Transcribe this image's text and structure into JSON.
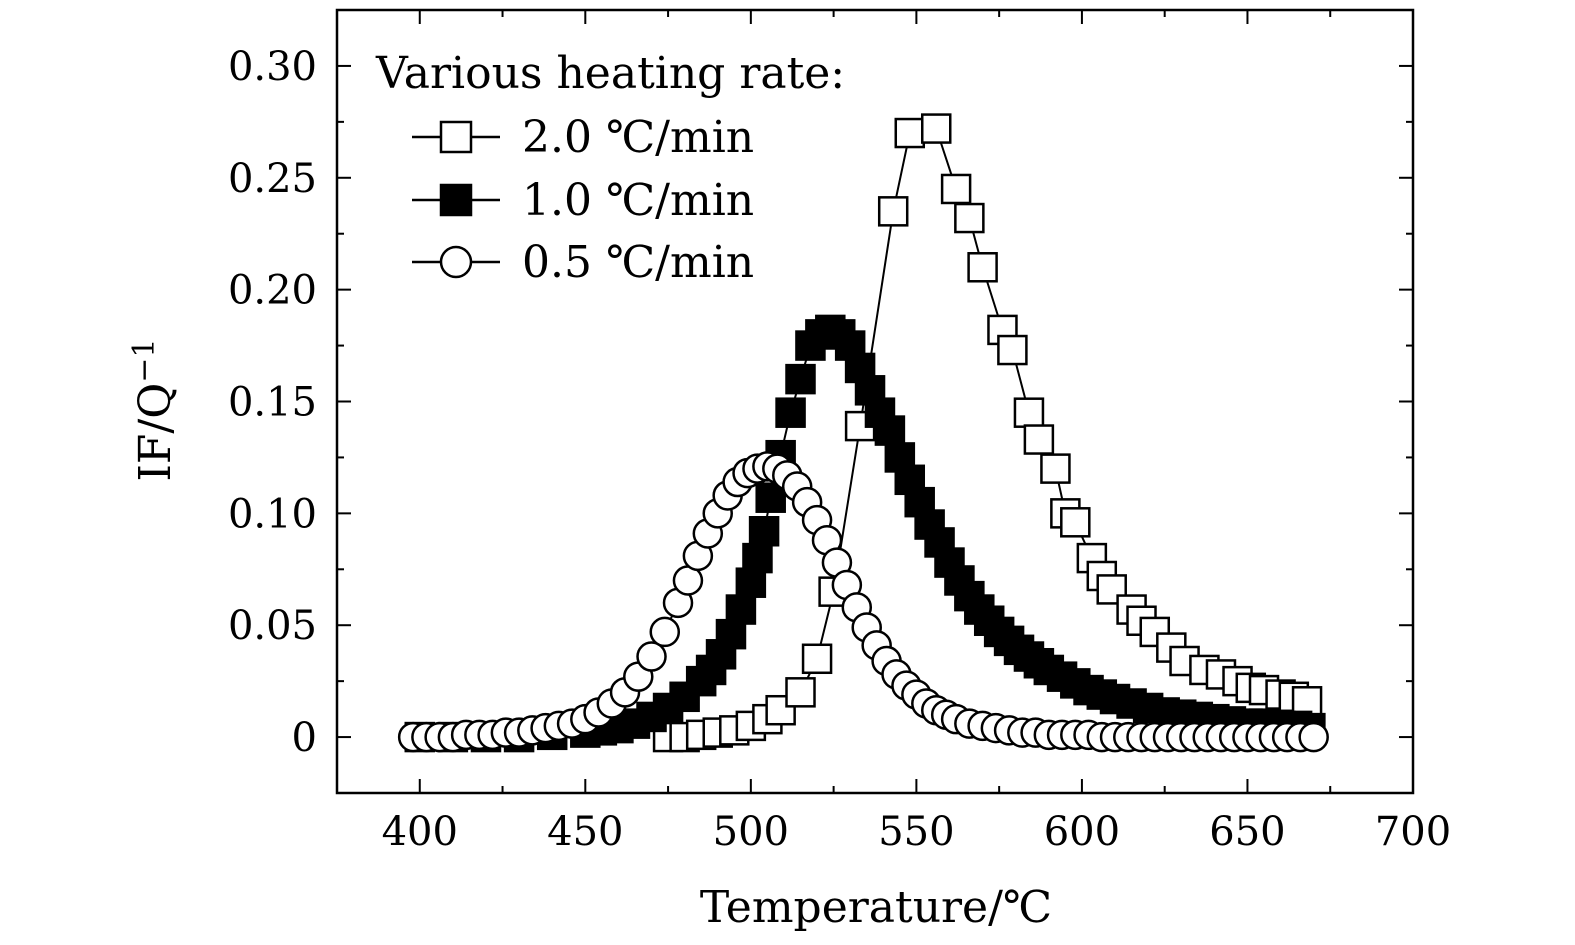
{
  "chart_data": {
    "type": "scatter",
    "xlabel": "Temperature/℃",
    "ylabel": "IF/Q",
    "ylabel_superscript": "−1",
    "xlim": [
      375,
      700
    ],
    "ylim": [
      -0.025,
      0.325
    ],
    "x_ticks": [
      400,
      450,
      500,
      550,
      600,
      650,
      700
    ],
    "x_tick_labels": [
      "400",
      "450",
      "500",
      "550",
      "600",
      "650",
      "700"
    ],
    "y_ticks": [
      0,
      0.05,
      0.1,
      0.15,
      0.2,
      0.25,
      0.3
    ],
    "y_tick_labels": [
      "0",
      "0.05",
      "0.10",
      "0.15",
      "0.20",
      "0.25",
      "0.30"
    ],
    "grid": false,
    "legend": {
      "title": "Various heating rate:",
      "position": "top-left"
    },
    "series": [
      {
        "name": "2.0 ℃/min",
        "marker": "open-square",
        "x": [
          475,
          480,
          485,
          490,
          495,
          500,
          505,
          509,
          515,
          520,
          525,
          533,
          543,
          548,
          556,
          562,
          566,
          570,
          576,
          579,
          584,
          587,
          592,
          595,
          598,
          603,
          606,
          609,
          615,
          618,
          622,
          627,
          631,
          637,
          642,
          647,
          651,
          655,
          660,
          664,
          668
        ],
        "y": [
          0.0,
          0.0,
          0.001,
          0.002,
          0.003,
          0.005,
          0.008,
          0.012,
          0.02,
          0.035,
          0.065,
          0.139,
          0.235,
          0.27,
          0.272,
          0.245,
          0.232,
          0.21,
          0.182,
          0.173,
          0.145,
          0.133,
          0.12,
          0.1,
          0.096,
          0.08,
          0.072,
          0.066,
          0.057,
          0.052,
          0.047,
          0.04,
          0.034,
          0.03,
          0.028,
          0.025,
          0.022,
          0.021,
          0.019,
          0.018,
          0.016
        ]
      },
      {
        "name": "1.0 ℃/min",
        "marker": "filled-square",
        "x": [
          400,
          410,
          420,
          430,
          440,
          450,
          455,
          460,
          465,
          470,
          475,
          480,
          485,
          488,
          491,
          494,
          497,
          500,
          502,
          504,
          506,
          509,
          512,
          515,
          518,
          521,
          524,
          527,
          530,
          533,
          536,
          539,
          542,
          545,
          548,
          551,
          554,
          557,
          560,
          563,
          566,
          569,
          572,
          575,
          578,
          581,
          584,
          587,
          590,
          594,
          598,
          602,
          606,
          610,
          615,
          620,
          625,
          630,
          635,
          640,
          645,
          650,
          655,
          660,
          665,
          669
        ],
        "y": [
          0.0,
          0.0,
          0.0,
          0.0,
          0.001,
          0.002,
          0.003,
          0.004,
          0.006,
          0.009,
          0.013,
          0.018,
          0.025,
          0.03,
          0.037,
          0.046,
          0.057,
          0.069,
          0.08,
          0.092,
          0.107,
          0.126,
          0.145,
          0.16,
          0.175,
          0.18,
          0.182,
          0.18,
          0.175,
          0.165,
          0.155,
          0.145,
          0.137,
          0.125,
          0.115,
          0.105,
          0.095,
          0.087,
          0.078,
          0.07,
          0.063,
          0.057,
          0.052,
          0.047,
          0.043,
          0.039,
          0.036,
          0.033,
          0.03,
          0.027,
          0.024,
          0.021,
          0.019,
          0.017,
          0.015,
          0.013,
          0.011,
          0.01,
          0.009,
          0.008,
          0.007,
          0.006,
          0.006,
          0.005,
          0.005,
          0.004
        ]
      },
      {
        "name": "0.5 ℃/min",
        "marker": "open-circle",
        "x": [
          398,
          402,
          406,
          410,
          414,
          418,
          422,
          426,
          430,
          434,
          438,
          442,
          446,
          450,
          454,
          458,
          462,
          466,
          470,
          474,
          478,
          481,
          484,
          487,
          490,
          493,
          496,
          499,
          502,
          505,
          508,
          511,
          514,
          517,
          520,
          523,
          526,
          529,
          532,
          535,
          538,
          541,
          544,
          547,
          550,
          553,
          556,
          559,
          562,
          566,
          570,
          574,
          578,
          582,
          586,
          590,
          594,
          598,
          602,
          606,
          610,
          614,
          618,
          622,
          626,
          630,
          634,
          638,
          642,
          646,
          650,
          654,
          658,
          662,
          666,
          670
        ],
        "y": [
          0.0,
          0.0,
          0.0,
          0.0,
          0.001,
          0.001,
          0.001,
          0.002,
          0.002,
          0.003,
          0.004,
          0.005,
          0.006,
          0.008,
          0.011,
          0.015,
          0.02,
          0.027,
          0.036,
          0.047,
          0.06,
          0.07,
          0.081,
          0.091,
          0.1,
          0.108,
          0.114,
          0.118,
          0.12,
          0.121,
          0.12,
          0.117,
          0.112,
          0.105,
          0.097,
          0.088,
          0.078,
          0.068,
          0.058,
          0.049,
          0.041,
          0.034,
          0.028,
          0.023,
          0.019,
          0.015,
          0.012,
          0.01,
          0.008,
          0.006,
          0.005,
          0.004,
          0.003,
          0.002,
          0.002,
          0.001,
          0.001,
          0.001,
          0.001,
          0.0,
          0.0,
          0.0,
          0.0,
          0.0,
          0.0,
          0.0,
          0.0,
          0.0,
          0.0,
          0.0,
          0.0,
          0.0,
          0.0,
          0.0,
          0.0,
          0.0
        ]
      }
    ]
  }
}
